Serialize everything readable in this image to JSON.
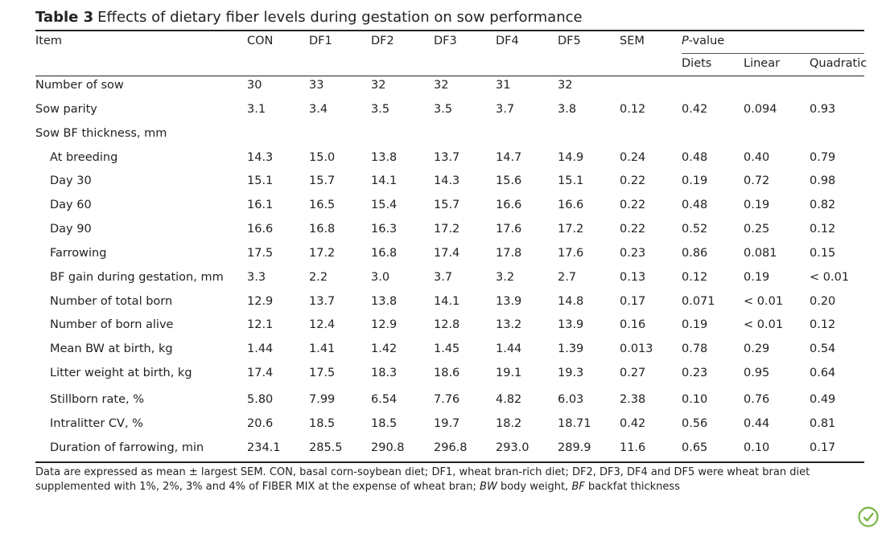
{
  "caption": {
    "label": "Table 3",
    "title": "Effects of dietary fiber levels during gestation on sow performance"
  },
  "header": {
    "item": "Item",
    "columns": [
      "CON",
      "DF1",
      "DF2",
      "DF3",
      "DF4",
      "DF5",
      "SEM"
    ],
    "pvalue_label": "P",
    "pvalue_suffix": "-value",
    "pvalue_columns": [
      "Diets",
      "Linear",
      "Quadratic"
    ]
  },
  "rows": [
    {
      "label": "Number of sow",
      "indent": false,
      "values": [
        "30",
        "33",
        "32",
        "32",
        "31",
        "32",
        "",
        "",
        "",
        ""
      ]
    },
    {
      "label": "Sow parity",
      "indent": false,
      "values": [
        "3.1",
        "3.4",
        "3.5",
        "3.5",
        "3.7",
        "3.8",
        "0.12",
        "0.42",
        "0.094",
        "0.93"
      ]
    },
    {
      "label": "Sow BF thickness, mm",
      "indent": false,
      "values": [
        "",
        "",
        "",
        "",
        "",
        "",
        "",
        "",
        "",
        ""
      ]
    },
    {
      "label": "At breeding",
      "indent": true,
      "values": [
        "14.3",
        "15.0",
        "13.8",
        "13.7",
        "14.7",
        "14.9",
        "0.24",
        "0.48",
        "0.40",
        "0.79"
      ]
    },
    {
      "label": "Day 30",
      "indent": true,
      "values": [
        "15.1",
        "15.7",
        "14.1",
        "14.3",
        "15.6",
        "15.1",
        "0.22",
        "0.19",
        "0.72",
        "0.98"
      ]
    },
    {
      "label": "Day 60",
      "indent": true,
      "values": [
        "16.1",
        "16.5",
        "15.4",
        "15.7",
        "16.6",
        "16.6",
        "0.22",
        "0.48",
        "0.19",
        "0.82"
      ]
    },
    {
      "label": "Day 90",
      "indent": true,
      "values": [
        "16.6",
        "16.8",
        "16.3",
        "17.2",
        "17.6",
        "17.2",
        "0.22",
        "0.52",
        "0.25",
        "0.12"
      ]
    },
    {
      "label": "Farrowing",
      "indent": true,
      "values": [
        "17.5",
        "17.2",
        "16.8",
        "17.4",
        "17.8",
        "17.6",
        "0.23",
        "0.86",
        "0.081",
        "0.15"
      ]
    },
    {
      "label": "BF gain during gestation, mm",
      "indent": true,
      "values": [
        "3.3",
        "2.2",
        "3.0",
        "3.7",
        "3.2",
        "2.7",
        "0.13",
        "0.12",
        "0.19",
        "< 0.01"
      ]
    },
    {
      "label": "Number of total born",
      "indent": true,
      "values": [
        "12.9",
        "13.7",
        "13.8",
        "14.1",
        "13.9",
        "14.8",
        "0.17",
        "0.071",
        "< 0.01",
        "0.20"
      ]
    },
    {
      "label": "Number of born alive",
      "indent": true,
      "values": [
        "12.1",
        "12.4",
        "12.9",
        "12.8",
        "13.2",
        "13.9",
        "0.16",
        "0.19",
        "< 0.01",
        "0.12"
      ]
    },
    {
      "label": "Mean BW at birth, kg",
      "indent": true,
      "values": [
        "1.44",
        "1.41",
        "1.42",
        "1.45",
        "1.44",
        "1.39",
        "0.013",
        "0.78",
        "0.29",
        "0.54"
      ]
    },
    {
      "label": "Litter weight at birth, kg",
      "indent": true,
      "values": [
        "17.4",
        "17.5",
        "18.3",
        "18.6",
        "19.1",
        "19.3",
        "0.27",
        "0.23",
        "0.95",
        "0.64"
      ]
    },
    {
      "label": "Stillborn rate, %",
      "indent": true,
      "values": [
        "5.80",
        "7.99",
        "6.54",
        "7.76",
        "4.82",
        "6.03",
        "2.38",
        "0.10",
        "0.76",
        "0.49"
      ]
    },
    {
      "label": "Intralitter CV, %",
      "indent": true,
      "values": [
        "20.6",
        "18.5",
        "18.5",
        "19.7",
        "18.2",
        "18.71",
        "0.42",
        "0.56",
        "0.44",
        "0.81"
      ]
    },
    {
      "label": "Duration of farrowing, min",
      "indent": true,
      "values": [
        "234.1",
        "285.5",
        "290.8",
        "296.8",
        "293.0",
        "289.9",
        "11.6",
        "0.65",
        "0.10",
        "0.17"
      ]
    }
  ],
  "footnote": {
    "text1": "Data are expressed as mean ± largest SEM. CON, basal corn-soybean diet; DF1, wheat bran-rich diet; DF2, DF3, DF4 and DF5 were wheat bran diet supplemented with 1%, 2%, 3% and 4% of FIBER MIX at the expense of wheat bran; ",
    "bw_abbr": "BW",
    "text2": " body weight, ",
    "bf_abbr": "BF",
    "text3": " backfat thickness"
  },
  "logo": {
    "icon": "crossmark-icon",
    "color": "#7ab648"
  }
}
